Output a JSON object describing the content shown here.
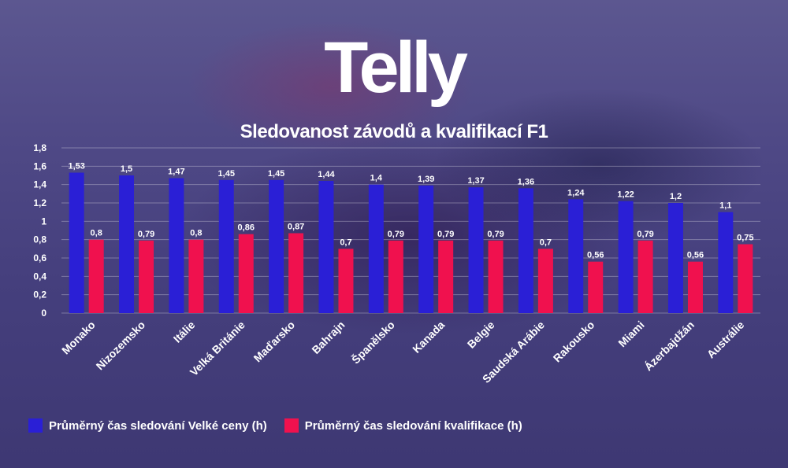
{
  "logo": {
    "text": "Telly"
  },
  "colors": {
    "series1": "#2a1fd6",
    "series2": "#f0114e",
    "text": "#ffffff"
  },
  "chart_data": {
    "type": "bar",
    "title": "Sledovanost závodů a kvalifikací F1",
    "categories": [
      "Monako",
      "Nizozemsko",
      "Itálie",
      "Velká Británie",
      "Maďarsko",
      "Bahrajn",
      "Španělsko",
      "Kanada",
      "Belgie",
      "Saudská Arábie",
      "Rakousko",
      "Miami",
      "Ázerbajdžán",
      "Austrálie"
    ],
    "series": [
      {
        "name": "Průměrný čas sledování Velké ceny (h)",
        "values": [
          1.53,
          1.5,
          1.47,
          1.45,
          1.45,
          1.44,
          1.4,
          1.39,
          1.37,
          1.36,
          1.24,
          1.22,
          1.2,
          1.1
        ]
      },
      {
        "name": "Průměrný čas sledování kvalifikace (h)",
        "values": [
          0.8,
          0.79,
          0.8,
          0.86,
          0.87,
          0.7,
          0.79,
          0.79,
          0.79,
          0.7,
          0.56,
          0.79,
          0.56,
          0.75
        ]
      }
    ],
    "ylim": [
      0,
      1.8
    ],
    "yticks": [
      "0",
      "0,2",
      "0,4",
      "0,6",
      "0,8",
      "1",
      "1,2",
      "1,4",
      "1,6",
      "1,8"
    ],
    "grid": true,
    "decimal_separator": ",",
    "legend_position": "bottom-left"
  }
}
